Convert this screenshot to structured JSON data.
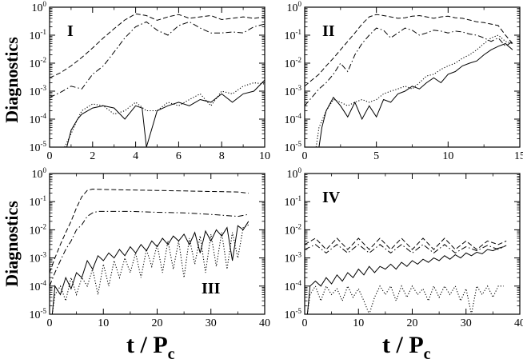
{
  "figure": {
    "ylabel": "Diagnostics",
    "xlabel_main": "t / P",
    "xlabel_sub": "c"
  },
  "chart_data": [
    {
      "type": "line",
      "id": "I",
      "label": "I",
      "xlim": [
        0,
        10
      ],
      "ylim_exp": [
        -5,
        0
      ],
      "xticks": [
        "0",
        "2",
        "4",
        "6",
        "8",
        "10"
      ],
      "yscale": "log",
      "series": [
        {
          "name": "dashed",
          "style": "dashed",
          "x": [
            0,
            0.5,
            1,
            1.5,
            2,
            2.5,
            3,
            3.5,
            4,
            4.5,
            5,
            5.5,
            6,
            6.5,
            7,
            7.5,
            8,
            8.5,
            9,
            9.5,
            10
          ],
          "y": [
            0.003,
            0.0045,
            0.008,
            0.016,
            0.035,
            0.08,
            0.17,
            0.35,
            0.58,
            0.5,
            0.34,
            0.45,
            0.55,
            0.4,
            0.45,
            0.5,
            0.36,
            0.4,
            0.45,
            0.4,
            0.45
          ]
        },
        {
          "name": "dash-dot",
          "style": "dashdot",
          "x": [
            0,
            0.5,
            1,
            1.5,
            2,
            2.5,
            3,
            3.5,
            4,
            4.5,
            5,
            5.5,
            6,
            6.5,
            7,
            7.5,
            8,
            8.5,
            9,
            9.5,
            10
          ],
          "y": [
            0.0006,
            0.0009,
            0.0015,
            0.0012,
            0.004,
            0.008,
            0.025,
            0.08,
            0.2,
            0.3,
            0.15,
            0.1,
            0.22,
            0.3,
            0.18,
            0.12,
            0.12,
            0.13,
            0.12,
            0.2,
            0.25
          ]
        },
        {
          "name": "solid",
          "style": "solid",
          "x": [
            0.8,
            1,
            1.3,
            1.5,
            2,
            2.5,
            3,
            3.5,
            4,
            4.3,
            4.5,
            5,
            5.5,
            6,
            6.5,
            7,
            7.5,
            8,
            8.5,
            9,
            9.5,
            10
          ],
          "y": [
            1e-05,
            4e-05,
            0.0001,
            0.00015,
            0.00025,
            0.0003,
            0.00025,
            0.0001,
            0.0003,
            0.00025,
            1e-05,
            0.0002,
            0.0003,
            0.0004,
            0.0003,
            0.0005,
            0.0004,
            0.0008,
            0.0004,
            0.0008,
            0.001,
            0.0025
          ]
        },
        {
          "name": "dotted",
          "style": "dotted",
          "x": [
            0.7,
            1,
            1.3,
            1.5,
            2,
            2.5,
            3,
            3.5,
            4,
            4.5,
            5,
            5.5,
            6,
            6.5,
            7,
            7.5,
            8,
            8.5,
            9,
            9.5,
            10
          ],
          "y": [
            1e-05,
            3e-05,
            0.0001,
            0.0002,
            0.00035,
            0.0003,
            0.00015,
            0.0002,
            0.0004,
            0.0002,
            0.0002,
            0.0004,
            0.0003,
            0.0005,
            0.0008,
            0.0003,
            0.001,
            0.0008,
            0.0015,
            0.002,
            0.0018
          ]
        }
      ]
    },
    {
      "type": "line",
      "id": "II",
      "label": "II",
      "xlim": [
        0,
        15
      ],
      "ylim_exp": [
        -5,
        0
      ],
      "xticks": [
        "0",
        "5",
        "10",
        "15"
      ],
      "yscale": "log",
      "series": [
        {
          "name": "dashed",
          "style": "dashed",
          "x": [
            0,
            0.5,
            1,
            1.5,
            2,
            2.5,
            3,
            3.5,
            4,
            4.5,
            5,
            5.5,
            6,
            6.5,
            7,
            7.5,
            8,
            8.5,
            9,
            9.5,
            10,
            10.5,
            11,
            11.5,
            12,
            12.5,
            13,
            13.5,
            14,
            14.5
          ],
          "y": [
            0.0015,
            0.0025,
            0.004,
            0.008,
            0.015,
            0.03,
            0.06,
            0.12,
            0.25,
            0.45,
            0.55,
            0.5,
            0.45,
            0.4,
            0.42,
            0.48,
            0.5,
            0.45,
            0.4,
            0.45,
            0.48,
            0.42,
            0.4,
            0.35,
            0.3,
            0.28,
            0.25,
            0.22,
            0.1,
            0.05
          ]
        },
        {
          "name": "dash-dot",
          "style": "dashdot",
          "x": [
            0,
            0.5,
            1,
            1.5,
            2,
            2.5,
            3,
            3.5,
            4,
            4.5,
            5,
            5.5,
            6,
            6.5,
            7,
            7.5,
            8,
            8.5,
            9,
            9.5,
            10,
            10.5,
            11,
            11.5,
            12,
            12.5,
            13,
            13.5,
            14,
            14.5
          ],
          "y": [
            0.0003,
            0.0006,
            0.0012,
            0.002,
            0.004,
            0.01,
            0.005,
            0.02,
            0.05,
            0.1,
            0.18,
            0.15,
            0.08,
            0.12,
            0.18,
            0.15,
            0.1,
            0.12,
            0.15,
            0.14,
            0.12,
            0.14,
            0.13,
            0.11,
            0.1,
            0.08,
            0.06,
            0.08,
            0.04,
            0.06
          ]
        },
        {
          "name": "solid",
          "style": "solid",
          "x": [
            1,
            1.2,
            1.5,
            2,
            2.5,
            3,
            3.5,
            4,
            4.5,
            5,
            5.5,
            6,
            6.5,
            7,
            7.5,
            8,
            8.5,
            9,
            9.5,
            10,
            10.5,
            11,
            11.5,
            12,
            12.5,
            13,
            13.5,
            14,
            14.5
          ],
          "y": [
            1e-05,
            5e-05,
            0.0002,
            0.0006,
            0.0003,
            0.00012,
            0.0004,
            0.0001,
            0.0003,
            0.00012,
            0.0005,
            0.0004,
            0.0008,
            0.001,
            0.0015,
            0.0012,
            0.002,
            0.003,
            0.002,
            0.004,
            0.005,
            0.008,
            0.01,
            0.012,
            0.02,
            0.03,
            0.04,
            0.05,
            0.03
          ]
        },
        {
          "name": "dotted",
          "style": "dotted",
          "x": [
            0.8,
            1,
            1.5,
            2,
            2.5,
            3,
            3.5,
            4,
            4.5,
            5,
            5.5,
            6,
            6.5,
            7,
            7.5,
            8,
            8.5,
            9,
            9.5,
            10,
            10.5,
            11,
            11.5,
            12,
            12.5,
            13,
            13.5,
            14,
            14.5
          ],
          "y": [
            1e-05,
            5e-05,
            0.0002,
            0.0005,
            0.0004,
            0.0003,
            0.0004,
            0.0005,
            0.0004,
            0.0005,
            0.0008,
            0.001,
            0.0012,
            0.0015,
            0.0012,
            0.002,
            0.0035,
            0.004,
            0.006,
            0.008,
            0.01,
            0.015,
            0.02,
            0.03,
            0.05,
            0.08,
            0.1,
            0.06,
            0.05
          ]
        }
      ]
    },
    {
      "type": "line",
      "id": "III",
      "label": "III",
      "xlim": [
        0,
        40
      ],
      "ylim_exp": [
        -5,
        0
      ],
      "xticks": [
        "0",
        "10",
        "20",
        "30",
        "40"
      ],
      "yscale": "log",
      "series": [
        {
          "name": "dashed",
          "style": "dashed",
          "x": [
            0,
            1,
            2,
            3,
            4,
            5,
            6,
            7,
            8,
            10,
            15,
            20,
            25,
            30,
            35,
            37
          ],
          "y": [
            0.0003,
            0.001,
            0.003,
            0.008,
            0.02,
            0.06,
            0.15,
            0.25,
            0.28,
            0.27,
            0.26,
            0.25,
            0.24,
            0.23,
            0.22,
            0.2
          ]
        },
        {
          "name": "dash-dot",
          "style": "dashdot",
          "x": [
            0,
            1,
            2,
            3,
            4,
            5,
            6,
            7,
            8,
            9,
            10,
            15,
            20,
            25,
            30,
            35,
            37
          ],
          "y": [
            0.0001,
            0.0003,
            0.0008,
            0.002,
            0.004,
            0.01,
            0.015,
            0.03,
            0.04,
            0.045,
            0.045,
            0.045,
            0.042,
            0.04,
            0.035,
            0.03,
            0.035
          ]
        },
        {
          "name": "solid",
          "style": "solid",
          "x": [
            0.5,
            1,
            2,
            3,
            4,
            5,
            6,
            7,
            8,
            9,
            10,
            11,
            12,
            13,
            14,
            15,
            16,
            17,
            18,
            19,
            20,
            21,
            22,
            23,
            24,
            25,
            26,
            27,
            28,
            29,
            30,
            31,
            32,
            33,
            34,
            35,
            36,
            37
          ],
          "y": [
            1e-05,
            0.0001,
            5e-05,
            0.0002,
            8e-05,
            0.0003,
            0.0002,
            0.0008,
            0.0004,
            0.0012,
            0.0008,
            0.0015,
            0.001,
            0.002,
            0.0012,
            0.0025,
            0.0015,
            0.003,
            0.0018,
            0.004,
            0.0025,
            0.005,
            0.003,
            0.006,
            0.004,
            0.007,
            0.003,
            0.008,
            0.0015,
            0.009,
            0.004,
            0.01,
            0.006,
            0.012,
            0.0008,
            0.014,
            0.01,
            0.02
          ]
        },
        {
          "name": "dotted",
          "style": "dotted",
          "x": [
            0.5,
            1,
            2,
            3,
            4,
            5,
            6,
            7,
            8,
            9,
            10,
            11,
            12,
            13,
            14,
            15,
            16,
            17,
            18,
            19,
            20,
            21,
            22,
            23,
            24,
            25,
            26,
            27,
            28,
            29,
            30,
            31,
            32,
            33,
            34,
            35,
            36,
            37
          ],
          "y": [
            1e-05,
            5e-05,
            0.0001,
            3e-05,
            0.0002,
            5e-05,
            0.0002,
            0.0001,
            0.0004,
            5e-05,
            0.0006,
            0.0001,
            0.0008,
            0.0002,
            0.001,
            0.0003,
            0.0015,
            0.0002,
            0.002,
            0.0005,
            0.003,
            0.0003,
            0.004,
            0.0004,
            0.004,
            0.0002,
            0.005,
            0.0006,
            0.006,
            0.0003,
            0.007,
            0.0005,
            0.008,
            0.0004,
            0.008,
            0.001,
            0.012,
            0.015
          ]
        }
      ]
    },
    {
      "type": "line",
      "id": "IV",
      "label": "IV",
      "xlim": [
        0,
        40
      ],
      "ylim_exp": [
        -5,
        0
      ],
      "xticks": [
        "0",
        "10",
        "20",
        "30",
        "40"
      ],
      "yscale": "log",
      "series": [
        {
          "name": "dashed",
          "style": "dashed",
          "x": [
            0,
            2,
            4,
            6,
            8,
            10,
            12,
            14,
            16,
            18,
            20,
            22,
            24,
            26,
            28,
            30,
            32,
            34,
            36,
            37.5
          ],
          "y": [
            0.003,
            0.005,
            0.002,
            0.005,
            0.002,
            0.005,
            0.002,
            0.005,
            0.002,
            0.005,
            0.002,
            0.005,
            0.002,
            0.005,
            0.002,
            0.004,
            0.002,
            0.004,
            0.003,
            0.004
          ]
        },
        {
          "name": "dash-dot",
          "style": "dashdot",
          "x": [
            0,
            2,
            4,
            6,
            8,
            10,
            12,
            14,
            16,
            18,
            20,
            22,
            24,
            26,
            28,
            30,
            32,
            34,
            36,
            37.5
          ],
          "y": [
            0.002,
            0.003,
            0.0015,
            0.003,
            0.0015,
            0.003,
            0.0015,
            0.003,
            0.0015,
            0.003,
            0.0015,
            0.003,
            0.0015,
            0.003,
            0.0015,
            0.0025,
            0.0018,
            0.0028,
            0.002,
            0.0028
          ]
        },
        {
          "name": "solid",
          "style": "solid",
          "x": [
            0.5,
            1,
            2,
            3,
            4,
            5,
            6,
            7,
            8,
            9,
            10,
            11,
            12,
            13,
            14,
            15,
            16,
            17,
            18,
            19,
            20,
            21,
            22,
            23,
            24,
            25,
            26,
            27,
            28,
            29,
            30,
            31,
            32,
            33,
            34,
            35,
            36,
            37
          ],
          "y": [
            1e-05,
            0.0001,
            0.00015,
            0.0001,
            0.0002,
            0.00012,
            0.00025,
            0.00015,
            0.0003,
            0.0002,
            0.0004,
            0.00025,
            0.0005,
            0.0003,
            0.0005,
            0.0004,
            0.0006,
            0.0004,
            0.0007,
            0.0005,
            0.0008,
            0.0006,
            0.0009,
            0.0007,
            0.001,
            0.0008,
            0.0012,
            0.0009,
            0.0013,
            0.001,
            0.0015,
            0.0012,
            0.0016,
            0.0014,
            0.002,
            0.0018,
            0.0022,
            0.0025
          ]
        },
        {
          "name": "dotted",
          "style": "dotted",
          "x": [
            0.5,
            1,
            2,
            3,
            4,
            5,
            6,
            7,
            8,
            9,
            10,
            11,
            12,
            13,
            14,
            15,
            16,
            17,
            18,
            19,
            20,
            21,
            22,
            23,
            24,
            25,
            26,
            27,
            28,
            29,
            30,
            31,
            32,
            33,
            34,
            35,
            36,
            37
          ],
          "y": [
            1e-05,
            5e-05,
            0.0001,
            3e-05,
            0.0001,
            5e-05,
            8e-05,
            3e-05,
            0.0001,
            4e-05,
            8e-05,
            3e-05,
            1e-05,
            4e-05,
            0.0001,
            5e-05,
            0.0001,
            3e-05,
            0.0001,
            4e-05,
            0.0001,
            5e-05,
            8e-05,
            3e-05,
            0.0001,
            4e-05,
            0.0001,
            5e-05,
            0.0001,
            3e-05,
            8e-05,
            1e-05,
            0.0001,
            5e-05,
            0.0001,
            4e-05,
            0.0001,
            0.0001
          ]
        }
      ]
    }
  ]
}
